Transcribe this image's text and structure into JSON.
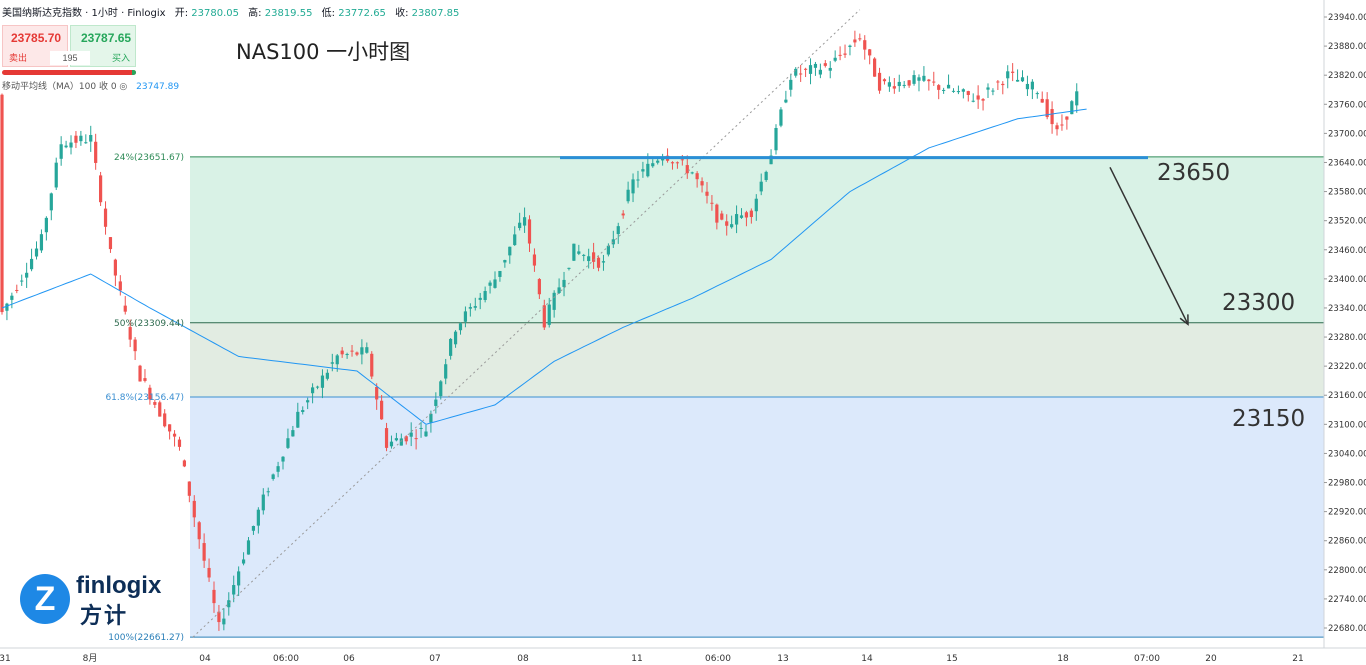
{
  "header": {
    "instrument": "美国纳斯达克指数 · 1小时 · Finlogix",
    "open_label": "开:",
    "open": "23780.05",
    "high_label": "高:",
    "high": "23819.55",
    "low_label": "低:",
    "low": "23772.65",
    "close_label": "收:",
    "close": "23807.85"
  },
  "trade": {
    "sell_price": "23785.70",
    "sell_label": "卖出",
    "buy_price": "23787.65",
    "buy_label": "买入",
    "spread": "195"
  },
  "indicator": {
    "label": "移动平均线（MA）100 收 0  ◎",
    "value": "23747.89"
  },
  "title": "NAS100 一小时图",
  "annotations": {
    "level_high": "23650",
    "level_mid": "23300",
    "level_low": "23150"
  },
  "logo": {
    "icon": "finlogix-z-icon",
    "word": "finlogix",
    "cn": "方计"
  },
  "colors": {
    "up": "#26a69a",
    "down": "#ef5350",
    "ma": "#2196f3",
    "zone_green": "#d9f2e6",
    "zone_blue": "#dce9fb",
    "hline": "#2a8fd6"
  },
  "chart_data": {
    "type": "candlestick",
    "title": "NAS100 一小时图",
    "ylim": [
      22640,
      23960
    ],
    "y_ticks": [
      "23940.00",
      "23880.00",
      "23820.00",
      "23760.00",
      "23700.00",
      "23640.00",
      "23580.00",
      "23520.00",
      "23460.00",
      "23400.00",
      "23340.00",
      "23280.00",
      "23220.00",
      "23160.00",
      "23100.00",
      "23040.00",
      "22980.00",
      "22920.00",
      "22860.00",
      "22800.00",
      "22740.00",
      "22680.00"
    ],
    "x_labels": [
      "31",
      "8月",
      "04",
      "06:00",
      "06",
      "07",
      "08",
      "11",
      "06:00",
      "13",
      "14",
      "15",
      "18",
      "07:00",
      "20",
      "21"
    ],
    "fib_levels": [
      {
        "label": "24%(23651.67)",
        "value": 23651.67
      },
      {
        "label": "50%(23309.44)",
        "value": 23309.44
      },
      {
        "label": "61.8%(23156.47)",
        "value": 23156.47
      },
      {
        "label": "100%(22661.27)",
        "value": 22661.27
      }
    ],
    "horizontal_line": 23650,
    "arrow_target": 23300,
    "ma": {
      "name": "移动平均线（MA）100",
      "last": 23747.89
    },
    "price_path": [
      {
        "i": 0,
        "v": 23330
      },
      {
        "i": 8,
        "v": 23480
      },
      {
        "i": 12,
        "v": 23680
      },
      {
        "i": 18,
        "v": 23690
      },
      {
        "i": 22,
        "v": 23450
      },
      {
        "i": 28,
        "v": 23200
      },
      {
        "i": 36,
        "v": 23050
      },
      {
        "i": 44,
        "v": 22680
      },
      {
        "i": 52,
        "v": 22920
      },
      {
        "i": 60,
        "v": 23120
      },
      {
        "i": 68,
        "v": 23240
      },
      {
        "i": 74,
        "v": 23250
      },
      {
        "i": 78,
        "v": 23060
      },
      {
        "i": 86,
        "v": 23090
      },
      {
        "i": 92,
        "v": 23300
      },
      {
        "i": 100,
        "v": 23400
      },
      {
        "i": 106,
        "v": 23530
      },
      {
        "i": 110,
        "v": 23310
      },
      {
        "i": 116,
        "v": 23460
      },
      {
        "i": 122,
        "v": 23430
      },
      {
        "i": 128,
        "v": 23600
      },
      {
        "i": 134,
        "v": 23660
      },
      {
        "i": 140,
        "v": 23620
      },
      {
        "i": 146,
        "v": 23510
      },
      {
        "i": 152,
        "v": 23540
      },
      {
        "i": 156,
        "v": 23660
      },
      {
        "i": 160,
        "v": 23820
      },
      {
        "i": 168,
        "v": 23840
      },
      {
        "i": 174,
        "v": 23900
      },
      {
        "i": 178,
        "v": 23800
      },
      {
        "i": 186,
        "v": 23810
      },
      {
        "i": 192,
        "v": 23790
      },
      {
        "i": 198,
        "v": 23770
      },
      {
        "i": 204,
        "v": 23820
      },
      {
        "i": 210,
        "v": 23790
      },
      {
        "i": 214,
        "v": 23700
      },
      {
        "i": 218,
        "v": 23780
      }
    ],
    "ma_path": [
      {
        "i": 0,
        "v": 23340
      },
      {
        "i": 18,
        "v": 23410
      },
      {
        "i": 30,
        "v": 23340
      },
      {
        "i": 48,
        "v": 23240
      },
      {
        "i": 72,
        "v": 23210
      },
      {
        "i": 86,
        "v": 23100
      },
      {
        "i": 100,
        "v": 23140
      },
      {
        "i": 112,
        "v": 23230
      },
      {
        "i": 126,
        "v": 23300
      },
      {
        "i": 140,
        "v": 23360
      },
      {
        "i": 156,
        "v": 23440
      },
      {
        "i": 172,
        "v": 23580
      },
      {
        "i": 188,
        "v": 23670
      },
      {
        "i": 206,
        "v": 23730
      },
      {
        "i": 220,
        "v": 23750
      }
    ]
  }
}
